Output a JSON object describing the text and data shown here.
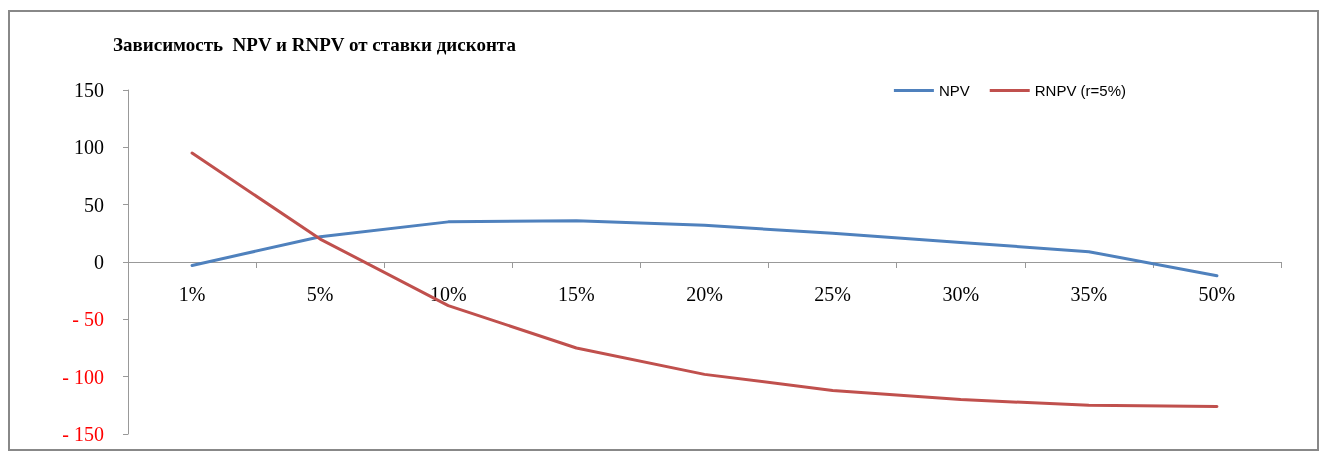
{
  "chart_data": {
    "type": "line",
    "title": "Зависимость  NPV и RNPV от ставки дисконта",
    "categories": [
      "1%",
      "5%",
      "10%",
      "15%",
      "20%",
      "25%",
      "30%",
      "35%",
      "50%"
    ],
    "series": [
      {
        "name": "NPV",
        "color": "#4f81bd",
        "values": [
          -3,
          22,
          35,
          36,
          32,
          25,
          17,
          9,
          -12
        ]
      },
      {
        "name": "RNPV (r=5%)",
        "color": "#c0504d",
        "values": [
          95,
          20,
          -38,
          -75,
          -98,
          -112,
          -120,
          -125,
          -126
        ]
      }
    ],
    "ylim": [
      -150,
      150
    ],
    "yticks": [
      {
        "value": -150,
        "label": "- 150"
      },
      {
        "value": -100,
        "label": "- 100"
      },
      {
        "value": -50,
        "label": "- 50"
      },
      0,
      50,
      100,
      150
    ],
    "grid": false,
    "legend": "top right",
    "marker": "none",
    "line_style": "solid"
  }
}
